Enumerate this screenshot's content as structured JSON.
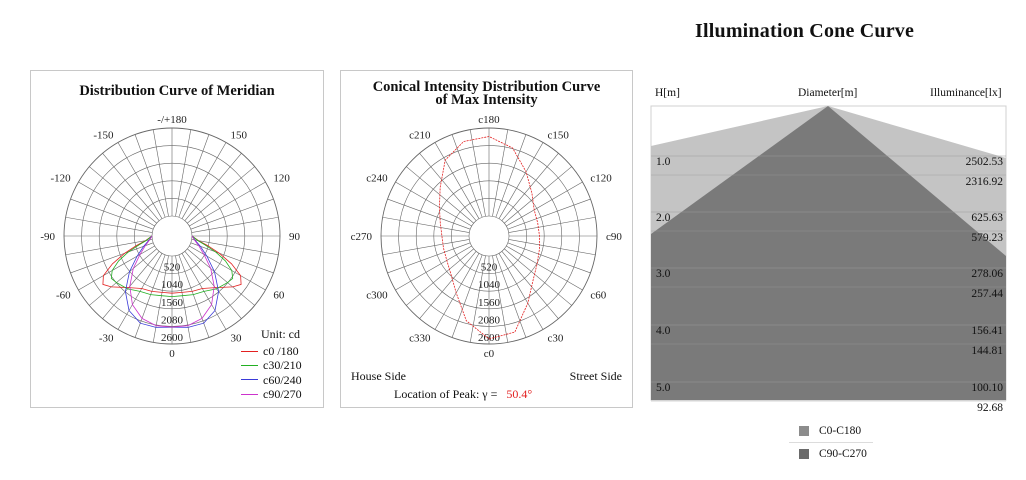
{
  "main_title": "Illumination Cone Curve",
  "panel1": {
    "title": "Distribution Curve of  Meridian",
    "unit": "Unit: cd",
    "legend": [
      {
        "label": "c0 /180",
        "color": "#e32020"
      },
      {
        "label": "c30/210",
        "color": "#22b022"
      },
      {
        "label": "c60/240",
        "color": "#3a3ad8"
      },
      {
        "label": "c90/270",
        "color": "#cc33cc"
      }
    ]
  },
  "panel2": {
    "title_line1": "Conical Intensity Distribution Curve",
    "title_line2": "of  Max Intensity",
    "house_side": "House Side",
    "street_side": "Street Side",
    "peak_label": "Location of Peak:  γ  =",
    "peak_value": "50.4°",
    "curve_color": "#e32020"
  },
  "cone": {
    "h_header": "H[m]",
    "diameter_header": "Diameter[m]",
    "illuminance_header": "Illuminance[lx]",
    "colors": {
      "c0": "#c4c4c4",
      "c90": "#7a7a7a"
    },
    "legend": [
      {
        "label": "C0-C180",
        "color": "#8c8c8c"
      },
      {
        "label": "C90-C270",
        "color": "#6a6a6a"
      }
    ]
  },
  "chart_data": [
    {
      "type": "polar",
      "title": "Distribution Curve of  Meridian",
      "unit": "cd",
      "radial_ticks": [
        520,
        1040,
        1560,
        2080,
        2600
      ],
      "rmax": 2600,
      "angle_labels": [
        "-/+180",
        "150",
        "120",
        "90",
        "60",
        "30",
        "0",
        "-30",
        "-60",
        "-90",
        "-120",
        "-150"
      ],
      "angle_values": [
        180,
        150,
        120,
        90,
        60,
        30,
        0,
        -30,
        -60,
        -90,
        -120,
        -150
      ],
      "series": [
        {
          "name": "c0 /180",
          "angles": [
            -90,
            -80,
            -75,
            -70,
            -65,
            -60,
            -55,
            -50,
            -40,
            -30,
            -20,
            -10,
            0,
            10,
            20,
            30,
            40,
            50,
            55,
            60,
            65,
            70,
            75,
            80,
            90
          ],
          "values": [
            0,
            200,
            500,
            900,
            1350,
            1750,
            1900,
            1750,
            1400,
            1200,
            1150,
            1100,
            1100,
            1100,
            1150,
            1200,
            1400,
            1750,
            1900,
            1750,
            1350,
            900,
            500,
            200,
            0
          ]
        },
        {
          "name": "c30/210",
          "angles": [
            -90,
            -80,
            -75,
            -70,
            -65,
            -60,
            -55,
            -50,
            -40,
            -30,
            -20,
            -10,
            0,
            10,
            20,
            30,
            40,
            50,
            55,
            60,
            65,
            70,
            75,
            80,
            90
          ],
          "values": [
            0,
            180,
            420,
            780,
            1150,
            1450,
            1600,
            1550,
            1450,
            1300,
            1250,
            1200,
            1200,
            1200,
            1250,
            1300,
            1450,
            1550,
            1600,
            1450,
            1150,
            780,
            420,
            180,
            0
          ]
        },
        {
          "name": "c60/240",
          "angles": [
            -90,
            -80,
            -70,
            -60,
            -50,
            -40,
            -30,
            -20,
            -10,
            0,
            10,
            20,
            30,
            40,
            50,
            60,
            70,
            80,
            90
          ],
          "values": [
            0,
            100,
            300,
            600,
            1050,
            1550,
            1950,
            2150,
            2150,
            2100,
            2150,
            2150,
            1950,
            1550,
            1050,
            600,
            300,
            100,
            0
          ]
        },
        {
          "name": "c90/270",
          "angles": [
            -90,
            -80,
            -70,
            -60,
            -50,
            -40,
            -30,
            -20,
            -10,
            0,
            10,
            20,
            30,
            40,
            50,
            60,
            70,
            80,
            90
          ],
          "values": [
            0,
            80,
            250,
            500,
            900,
            1350,
            1750,
            2000,
            2100,
            2100,
            2100,
            2000,
            1750,
            1350,
            900,
            500,
            250,
            80,
            0
          ]
        }
      ]
    },
    {
      "type": "polar",
      "title": "Conical Intensity Distribution Curve of  Max Intensity",
      "radial_ticks": [
        520,
        1040,
        1560,
        2080,
        2600
      ],
      "rmax": 2600,
      "angle_labels": [
        "c180",
        "c150",
        "c120",
        "c90",
        "c60",
        "c30",
        "c0",
        "c330",
        "c300",
        "c270",
        "c240",
        "c210"
      ],
      "angle_values": [
        180,
        150,
        120,
        90,
        60,
        30,
        0,
        -30,
        -60,
        -90,
        -120,
        -150
      ],
      "series": [
        {
          "name": "",
          "angles": [
            0,
            15,
            30,
            45,
            60,
            75,
            90,
            105,
            120,
            135,
            150,
            165,
            180,
            195,
            210,
            225,
            240,
            255,
            270,
            285,
            300,
            315,
            330,
            345,
            360
          ],
          "values": [
            2450,
            2350,
            1700,
            1250,
            1050,
            950,
            900,
            900,
            950,
            1200,
            1600,
            2100,
            2350,
            2300,
            2000,
            1450,
            1100,
            900,
            800,
            800,
            850,
            1000,
            1350,
            2000,
            2450
          ]
        }
      ],
      "peak_gamma": "50.4°"
    },
    {
      "type": "area",
      "title": "Illumination Cone Curve",
      "x_label": "Diameter[m]",
      "y_label": "H[m]",
      "value_label": "Illuminance[lx]",
      "heights": [
        "1.0",
        "2.0",
        "3.0",
        "4.0",
        "5.0"
      ],
      "series": [
        {
          "name": "C0-C180",
          "illuminance": [
            "2502.53",
            "625.63",
            "278.06",
            "156.41",
            "100.10"
          ]
        },
        {
          "name": "C90-C270",
          "illuminance": [
            "2316.92",
            "579.23",
            "257.44",
            "144.81",
            "92.68"
          ]
        }
      ]
    }
  ]
}
